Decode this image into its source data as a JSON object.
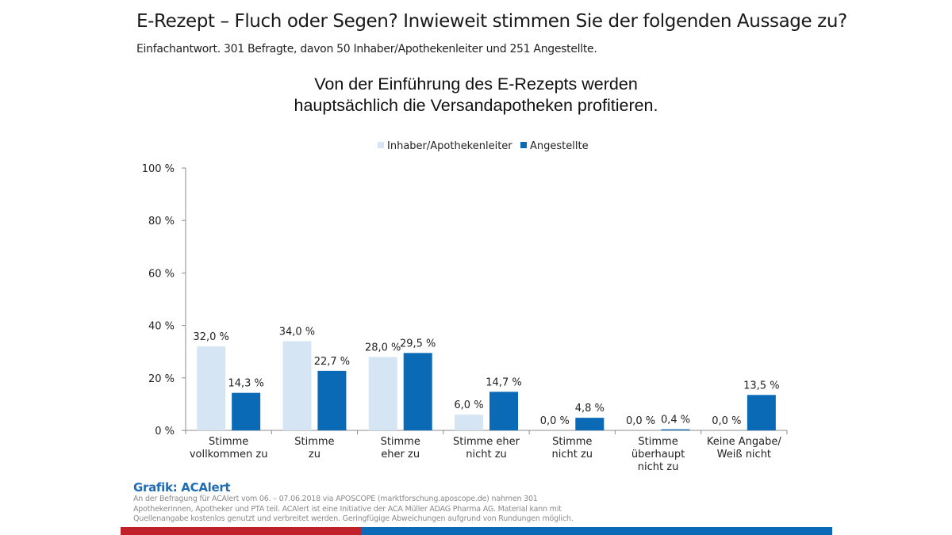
{
  "header": {
    "title": "E-Rezept – Fluch oder Segen? Inwieweit stimmen Sie der folgenden Aussage zu?",
    "subtitle": "Einfachantwort. 301 Befragte, davon 50 Inhaber/Apothekenleiter und 251 Angestellte."
  },
  "chart_data": {
    "type": "bar",
    "title_lines": [
      "Von der Einführung des E-Rezepts werden",
      "hauptsächlich die Versandapotheken profitieren."
    ],
    "categories": [
      [
        "Stimme",
        "vollkommen zu"
      ],
      [
        "Stimme",
        "zu"
      ],
      [
        "Stimme",
        "eher zu"
      ],
      [
        "Stimme eher",
        "nicht zu"
      ],
      [
        "Stimme",
        "nicht zu"
      ],
      [
        "Stimme",
        "überhaupt",
        "nicht zu"
      ],
      [
        "Keine Angabe/",
        "Weiß nicht"
      ]
    ],
    "series": [
      {
        "name": "Inhaber/Apothekenleiter",
        "color": "#d6e5f4",
        "values": [
          32.0,
          34.0,
          28.0,
          6.0,
          0.0,
          0.0,
          0.0
        ],
        "labels": [
          "32,0 %",
          "34,0 %",
          "28,0 %",
          "6,0 %",
          "0,0 %",
          "0,0 %",
          "0,0 %"
        ]
      },
      {
        "name": "Angestellte",
        "color": "#0a6ab6",
        "values": [
          14.3,
          22.7,
          29.5,
          14.7,
          4.8,
          0.4,
          13.5
        ],
        "labels": [
          "14,3 %",
          "22,7 %",
          "29,5 %",
          "14,7 %",
          "4,8 %",
          "0,4 %",
          "13,5 %"
        ]
      }
    ],
    "ylim": [
      0,
      100
    ],
    "yticks": [
      0,
      20,
      40,
      60,
      80,
      100
    ],
    "ytick_labels": [
      "0 %",
      "20 %",
      "40 %",
      "60 %",
      "80 %",
      "100 %"
    ],
    "xlabel": "",
    "ylabel": "",
    "grid": false,
    "legend_position": "top-center"
  },
  "footer": {
    "source_title": "Grafik: ACAlert",
    "source_text": "An der Befragung für ACAlert vom 06. – 07.06.2018 via APOSCOPE (marktforschung.aposcope.de) nahmen 301 Apothekerinnen, Apotheker und PTA teil. ACAlert ist eine Initiative der ACA Müller ADAG Pharma AG. Material kann mit Quellenangabe kostenlos genutzt und verbreitet werden. Geringfügige Abweichungen aufgrund von Rundungen möglich.",
    "brand_colors": {
      "red": "#c0202a",
      "blue": "#0a6ab6"
    }
  }
}
